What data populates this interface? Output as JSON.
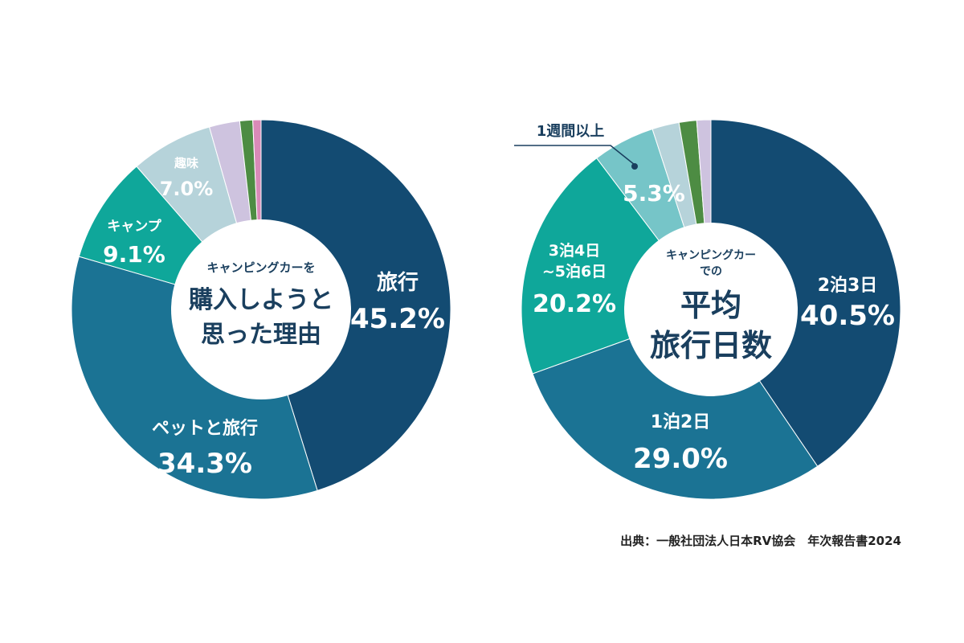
{
  "chart_data": [
    {
      "type": "pie",
      "variant": "donut",
      "center_text": [
        "キャンピングカーを",
        "購入しようと",
        "思った理由"
      ],
      "slices": [
        {
          "label": "旅行",
          "value": 45.2,
          "display": "45.2%",
          "color": "#134b72"
        },
        {
          "label": "ペットと旅行",
          "value": 34.3,
          "display": "34.3%",
          "color": "#1b7394"
        },
        {
          "label": "キャンプ",
          "value": 9.1,
          "display": "9.1%",
          "color": "#0fa79a"
        },
        {
          "label": "趣味",
          "value": 7.0,
          "display": "7.0%",
          "color": "#b6d3da"
        },
        {
          "label": "",
          "value": 2.6,
          "display": "",
          "color": "#cec3df"
        },
        {
          "label": "",
          "value": 1.1,
          "display": "",
          "color": "#4d8c43"
        },
        {
          "label": "",
          "value": 0.7,
          "display": "",
          "color": "#d98ab8"
        }
      ]
    },
    {
      "type": "pie",
      "variant": "donut",
      "center_text": [
        "キャンピングカー",
        "での",
        "平均",
        "旅行日数"
      ],
      "slices": [
        {
          "label": "2泊3日",
          "value": 40.5,
          "display": "40.5%",
          "color": "#134b72"
        },
        {
          "label": "1泊2日",
          "value": 29.0,
          "display": "29.0%",
          "color": "#1b7394"
        },
        {
          "label": "3泊4日\n~5泊6日",
          "value": 20.2,
          "display": "20.2%",
          "color": "#0fa79a"
        },
        {
          "label": "1週間以上",
          "value": 5.3,
          "display": "5.3%",
          "color": "#76c5c8"
        },
        {
          "label": "",
          "value": 2.3,
          "display": "",
          "color": "#b6d3da"
        },
        {
          "label": "",
          "value": 1.5,
          "display": "",
          "color": "#4d8c43"
        },
        {
          "label": "",
          "value": 1.2,
          "display": "",
          "color": "#cec3df"
        }
      ]
    }
  ],
  "source": "出典：一般社団法人日本RV協会　年次報告書2024"
}
